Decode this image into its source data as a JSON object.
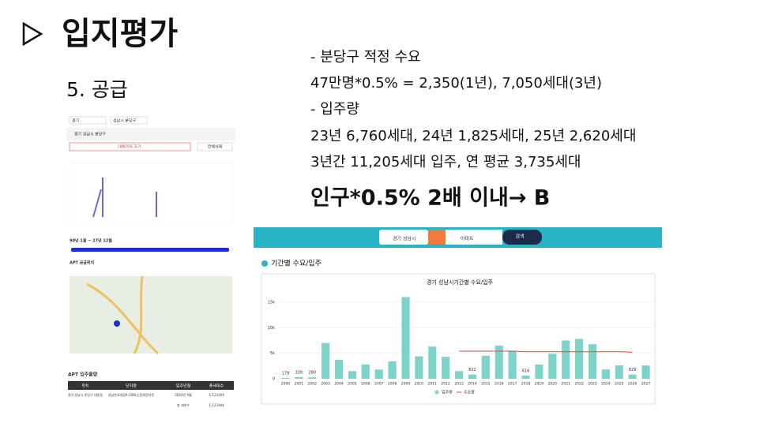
{
  "header": {
    "title": "입지평가",
    "subtitle": "5. 공급"
  },
  "notes": [
    "- 분당구 적정 수요",
    "47만명*0.5% = 2,350(1년), 7,050세대(3년)",
    "- 입주량",
    "23년 6,760세대, 24년 1,825세대, 25년 2,620세대",
    "3년간 11,205세대 입주, 연 평균 3,735세대"
  ],
  "conclusion": "인구*0.5% 2배 이내→  B",
  "left_screenshot": {
    "region": [
      "경기",
      "성남시 분당구"
    ],
    "selected": "경기 성남시 분당구",
    "buttons": [
      "대체지역 추가",
      "전체삭제"
    ],
    "range": "90년 1월 ~ 27년 12월",
    "map_label": "APT 공급위치",
    "table_title": "APT 입주물량",
    "table": {
      "header": [
        "위치",
        "단지명",
        "입주년월",
        "총세대수"
      ],
      "rows": [
        [
          "경기 성남시 분당구 대장동",
          "성남판교대장A-10BL신혼희망타운",
          "2024년 9월",
          "1,123세대"
        ],
        [
          "총 세대수",
          "1,123세대"
        ]
      ]
    }
  },
  "search_bar": {
    "region": "경기 성남시",
    "type": "아파트",
    "button": "검색"
  },
  "section_title": "기간별 수요/입주",
  "chart_data": {
    "type": "bar",
    "title": "경기 성남시기간별 수요/입주",
    "categories": [
      "2000",
      "2001",
      "2002",
      "2003",
      "2004",
      "2005",
      "2006",
      "2007",
      "2008",
      "2009",
      "2010",
      "2011",
      "2012",
      "2013",
      "2014",
      "2015",
      "2016",
      "2017",
      "2018",
      "2019",
      "2020",
      "2021",
      "2022",
      "2023",
      "2024",
      "2025",
      "2026",
      "2027"
    ],
    "series": [
      {
        "name": "입주량",
        "color": "#7dd3c9",
        "values": [
          179,
          339,
          280,
          7000,
          3700,
          1500,
          2800,
          1800,
          3400,
          16000,
          4400,
          6300,
          4300,
          1500,
          822,
          4500,
          6500,
          5500,
          616,
          2800,
          4900,
          7500,
          7800,
          6760,
          1825,
          2620,
          829,
          2600
        ],
        "value_labels": [
          "179",
          "339",
          "280",
          null,
          null,
          null,
          null,
          null,
          null,
          null,
          null,
          null,
          null,
          null,
          "822",
          null,
          null,
          null,
          "616",
          null,
          null,
          null,
          null,
          null,
          null,
          null,
          "829",
          null
        ]
      },
      {
        "name": "수요량",
        "color": "#e0474c",
        "type": "line",
        "values": [
          null,
          null,
          null,
          null,
          null,
          null,
          null,
          null,
          null,
          null,
          null,
          null,
          null,
          5400,
          5400,
          5400,
          5400,
          5400,
          5300,
          5300,
          5300,
          5300,
          5300,
          5300,
          5300,
          5300,
          5200,
          null
        ]
      }
    ],
    "ylim": [
      0,
      17000
    ],
    "yticks": [
      0,
      {
        "value": 5000,
        "label": "5k"
      },
      {
        "value": 10000,
        "label": "10k"
      },
      {
        "value": 15000,
        "label": "15k"
      }
    ],
    "grid": true
  }
}
